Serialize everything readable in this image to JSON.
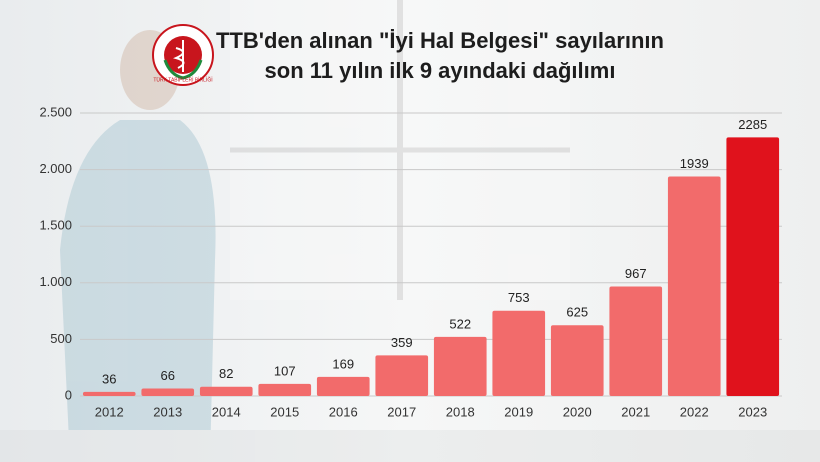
{
  "chart_data": {
    "type": "bar",
    "title": [
      "TTB'den alınan \"İyi Hal Belgesi\" sayılarının",
      "son 11 yılın ilk 9 ayındaki dağılımı"
    ],
    "logo_text": "TÜRK TABİPLERİ BİRLİĞİ",
    "categories": [
      "2012",
      "2013",
      "2014",
      "2015",
      "2016",
      "2017",
      "2018",
      "2019",
      "2020",
      "2021",
      "2022",
      "2023"
    ],
    "values": [
      36,
      66,
      82,
      107,
      169,
      359,
      522,
      753,
      625,
      967,
      1939,
      2285
    ],
    "colors": [
      "#f26b6b",
      "#f26b6b",
      "#f26b6b",
      "#f26b6b",
      "#f26b6b",
      "#f26b6b",
      "#f26b6b",
      "#f26b6b",
      "#f26b6b",
      "#f26b6b",
      "#f26b6b",
      "#e0121c"
    ],
    "ylim": [
      0,
      2500
    ],
    "yticks": [
      0,
      500,
      {
        "value": 1000,
        "label": "1.000"
      },
      {
        "value": 1500,
        "label": "1.500"
      },
      {
        "value": 2000,
        "label": "2.000"
      },
      {
        "value": 2500,
        "label": "2.500"
      }
    ],
    "grid": true
  }
}
